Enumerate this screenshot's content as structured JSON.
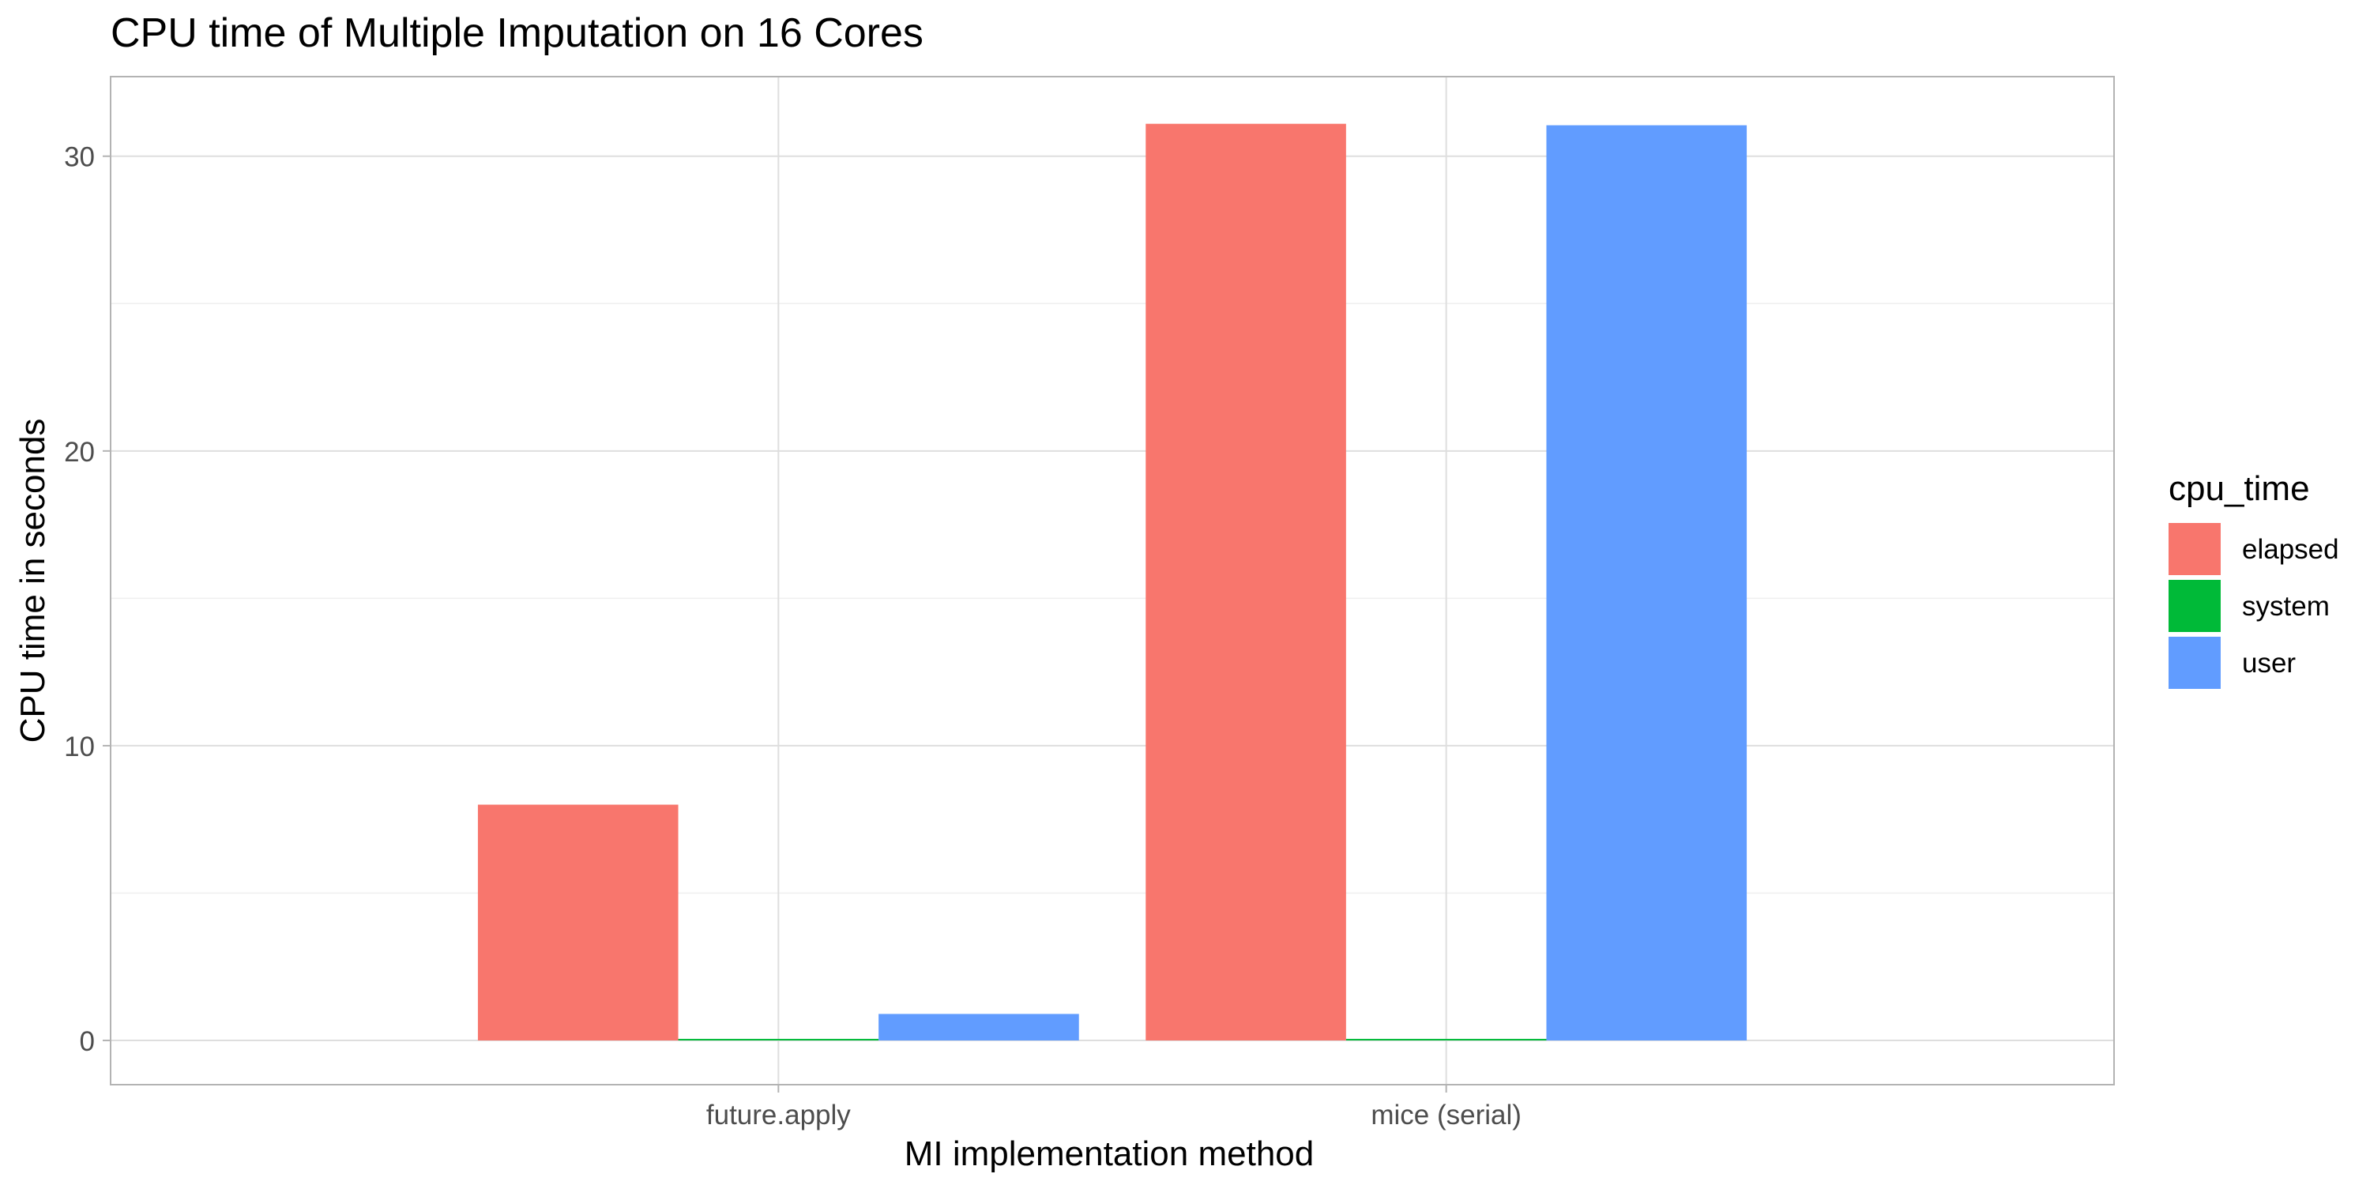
{
  "chart_data": {
    "type": "bar",
    "title": "CPU time of Multiple Imputation on 16 Cores",
    "xlabel": "MI implementation method",
    "ylabel": "CPU time in seconds",
    "categories": [
      "future.apply",
      "mice (serial)"
    ],
    "series": [
      {
        "name": "elapsed",
        "values": [
          8.0,
          31.1
        ],
        "color": "#F8766D"
      },
      {
        "name": "system",
        "values": [
          0.05,
          0.05
        ],
        "color": "#00BA38"
      },
      {
        "name": "user",
        "values": [
          0.9,
          31.05
        ],
        "color": "#619CFF"
      }
    ],
    "ylim": [
      -1.5,
      32.7
    ],
    "yticks": [
      0,
      10,
      20,
      30
    ],
    "ytick_labels": [
      "0",
      "10",
      "20",
      "30"
    ],
    "grid": true,
    "legend": {
      "title": "cpu_time",
      "position": "right"
    },
    "colors": {
      "grid_major": "#DEDEDE",
      "grid_minor": "#EFEFEF",
      "panel_border": "#B3B3B3",
      "tick_text": "#4D4D4D",
      "text": "#000000"
    }
  }
}
